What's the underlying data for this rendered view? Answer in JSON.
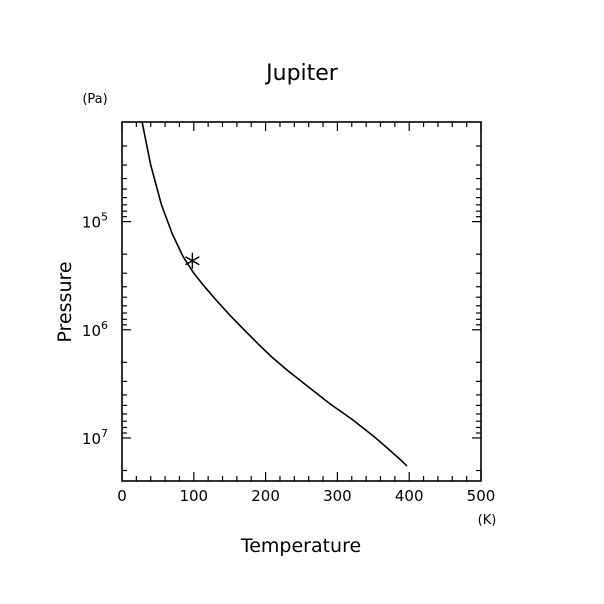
{
  "chart_data": {
    "type": "line",
    "title": "Jupiter",
    "xlabel": "Temperature",
    "xunit": "(K)",
    "ylabel": "Pressure",
    "yunit": "(Pa)",
    "xlim": [
      0,
      500
    ],
    "ylim": [
      12000,
      25000000
    ],
    "yscale": "log",
    "yaxis_inverted": true,
    "grid": false,
    "x_ticks": [
      {
        "value": 0,
        "label": "0"
      },
      {
        "value": 100,
        "label": "100"
      },
      {
        "value": 200,
        "label": "200"
      },
      {
        "value": 300,
        "label": "300"
      },
      {
        "value": 400,
        "label": "400"
      },
      {
        "value": 500,
        "label": "500"
      }
    ],
    "y_ticks": [
      {
        "value": 100000,
        "base": "10",
        "exp": "5"
      },
      {
        "value": 1000000,
        "base": "10",
        "exp": "6"
      },
      {
        "value": 10000000,
        "base": "10",
        "exp": "7"
      }
    ],
    "series": [
      {
        "x": [
          28,
          40,
          55,
          70,
          85,
          100,
          115,
          130,
          150,
          170,
          190,
          210,
          230,
          260,
          290,
          320,
          350,
          370,
          390,
          397
        ],
        "y": [
          12000,
          30000,
          70000,
          130000,
          210000,
          300000,
          400000,
          520000,
          730000,
          1000000,
          1360000,
          1820000,
          2360000,
          3390000,
          4850000,
          6700000,
          9600000,
          12500000,
          16400000,
          18200000
        ]
      }
    ],
    "marker": {
      "x": 98,
      "y": 230000,
      "symbol": "asterisk"
    }
  }
}
